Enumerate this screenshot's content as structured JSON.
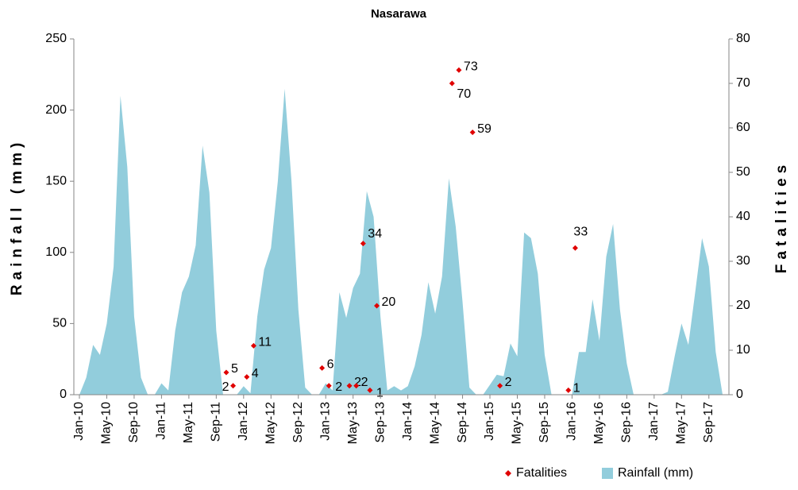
{
  "chart_data": {
    "type": "area_scatter",
    "title": "Nasarawa",
    "y_label": "Rainfall (mm)",
    "y2_label": "Fatalities",
    "categories": [
      "Jan-10",
      null,
      null,
      null,
      "May-10",
      null,
      null,
      null,
      "Sep-10",
      null,
      null,
      null,
      "Jan-11",
      null,
      null,
      null,
      "May-11",
      null,
      null,
      null,
      "Sep-11",
      null,
      null,
      null,
      "Jan-12",
      null,
      null,
      null,
      "May-12",
      null,
      null,
      null,
      "Sep-12",
      null,
      null,
      null,
      "Jan-13",
      null,
      null,
      null,
      "May-13",
      null,
      null,
      null,
      "Sep-13",
      null,
      null,
      null,
      "Jan-14",
      null,
      null,
      null,
      "May-14",
      null,
      null,
      null,
      "Sep-14",
      null,
      null,
      null,
      "Jan-15",
      null,
      null,
      null,
      "May-15",
      null,
      null,
      null,
      "Sep-15",
      null,
      null,
      null,
      "Jan-16",
      null,
      null,
      null,
      "May-16",
      null,
      null,
      null,
      "Sep-16",
      null,
      null,
      null,
      "Jan-17",
      null,
      null,
      null,
      "May-17",
      null,
      null,
      null,
      "Sep-17",
      null,
      null
    ],
    "series": [
      {
        "name": "Rainfall (mm)",
        "type": "area",
        "color": "#92cddc",
        "axis": "y",
        "values": [
          0,
          12,
          35,
          28,
          50,
          90,
          210,
          160,
          55,
          12,
          0,
          0,
          8,
          3,
          45,
          72,
          83,
          105,
          175,
          142,
          45,
          0,
          0,
          0,
          6,
          1,
          55,
          88,
          103,
          150,
          215,
          150,
          60,
          5,
          0,
          0,
          8,
          3,
          72,
          54,
          75,
          85,
          143,
          125,
          55,
          3,
          6,
          3,
          6,
          20,
          42,
          79,
          57,
          83,
          152,
          118,
          65,
          5,
          0,
          0,
          7,
          14,
          13,
          36,
          27,
          114,
          110,
          85,
          28,
          0,
          0,
          0,
          0,
          30,
          30,
          67,
          38,
          97,
          120,
          60,
          22,
          0,
          0,
          0,
          0,
          0,
          2,
          27,
          50,
          35,
          72,
          110,
          90,
          30,
          0
        ]
      },
      {
        "name": "Fatalities",
        "type": "scatter",
        "color": "#e00000",
        "axis": "y2",
        "values": [
          null,
          null,
          null,
          null,
          null,
          null,
          null,
          null,
          null,
          null,
          null,
          null,
          null,
          null,
          null,
          null,
          null,
          null,
          null,
          null,
          null,
          5,
          2,
          null,
          4,
          11,
          null,
          null,
          null,
          null,
          null,
          null,
          null,
          null,
          null,
          6,
          2,
          null,
          null,
          2,
          2,
          34,
          1,
          20,
          null,
          null,
          null,
          null,
          null,
          null,
          null,
          null,
          null,
          null,
          70,
          73,
          null,
          59,
          null,
          null,
          null,
          2,
          null,
          null,
          null,
          null,
          null,
          null,
          null,
          null,
          null,
          1,
          33,
          null,
          null,
          null,
          null,
          null,
          null,
          null,
          null,
          null,
          null,
          null,
          null,
          null,
          null,
          null,
          null,
          null,
          null,
          null,
          null,
          null,
          null
        ]
      }
    ],
    "ylim": [
      0,
      250
    ],
    "yticks": [
      0,
      50,
      100,
      150,
      200,
      250
    ],
    "y2lim": [
      0,
      80
    ],
    "y2ticks": [
      0,
      10,
      20,
      30,
      40,
      50,
      60,
      70,
      80
    ],
    "legend": "bottom-right"
  }
}
